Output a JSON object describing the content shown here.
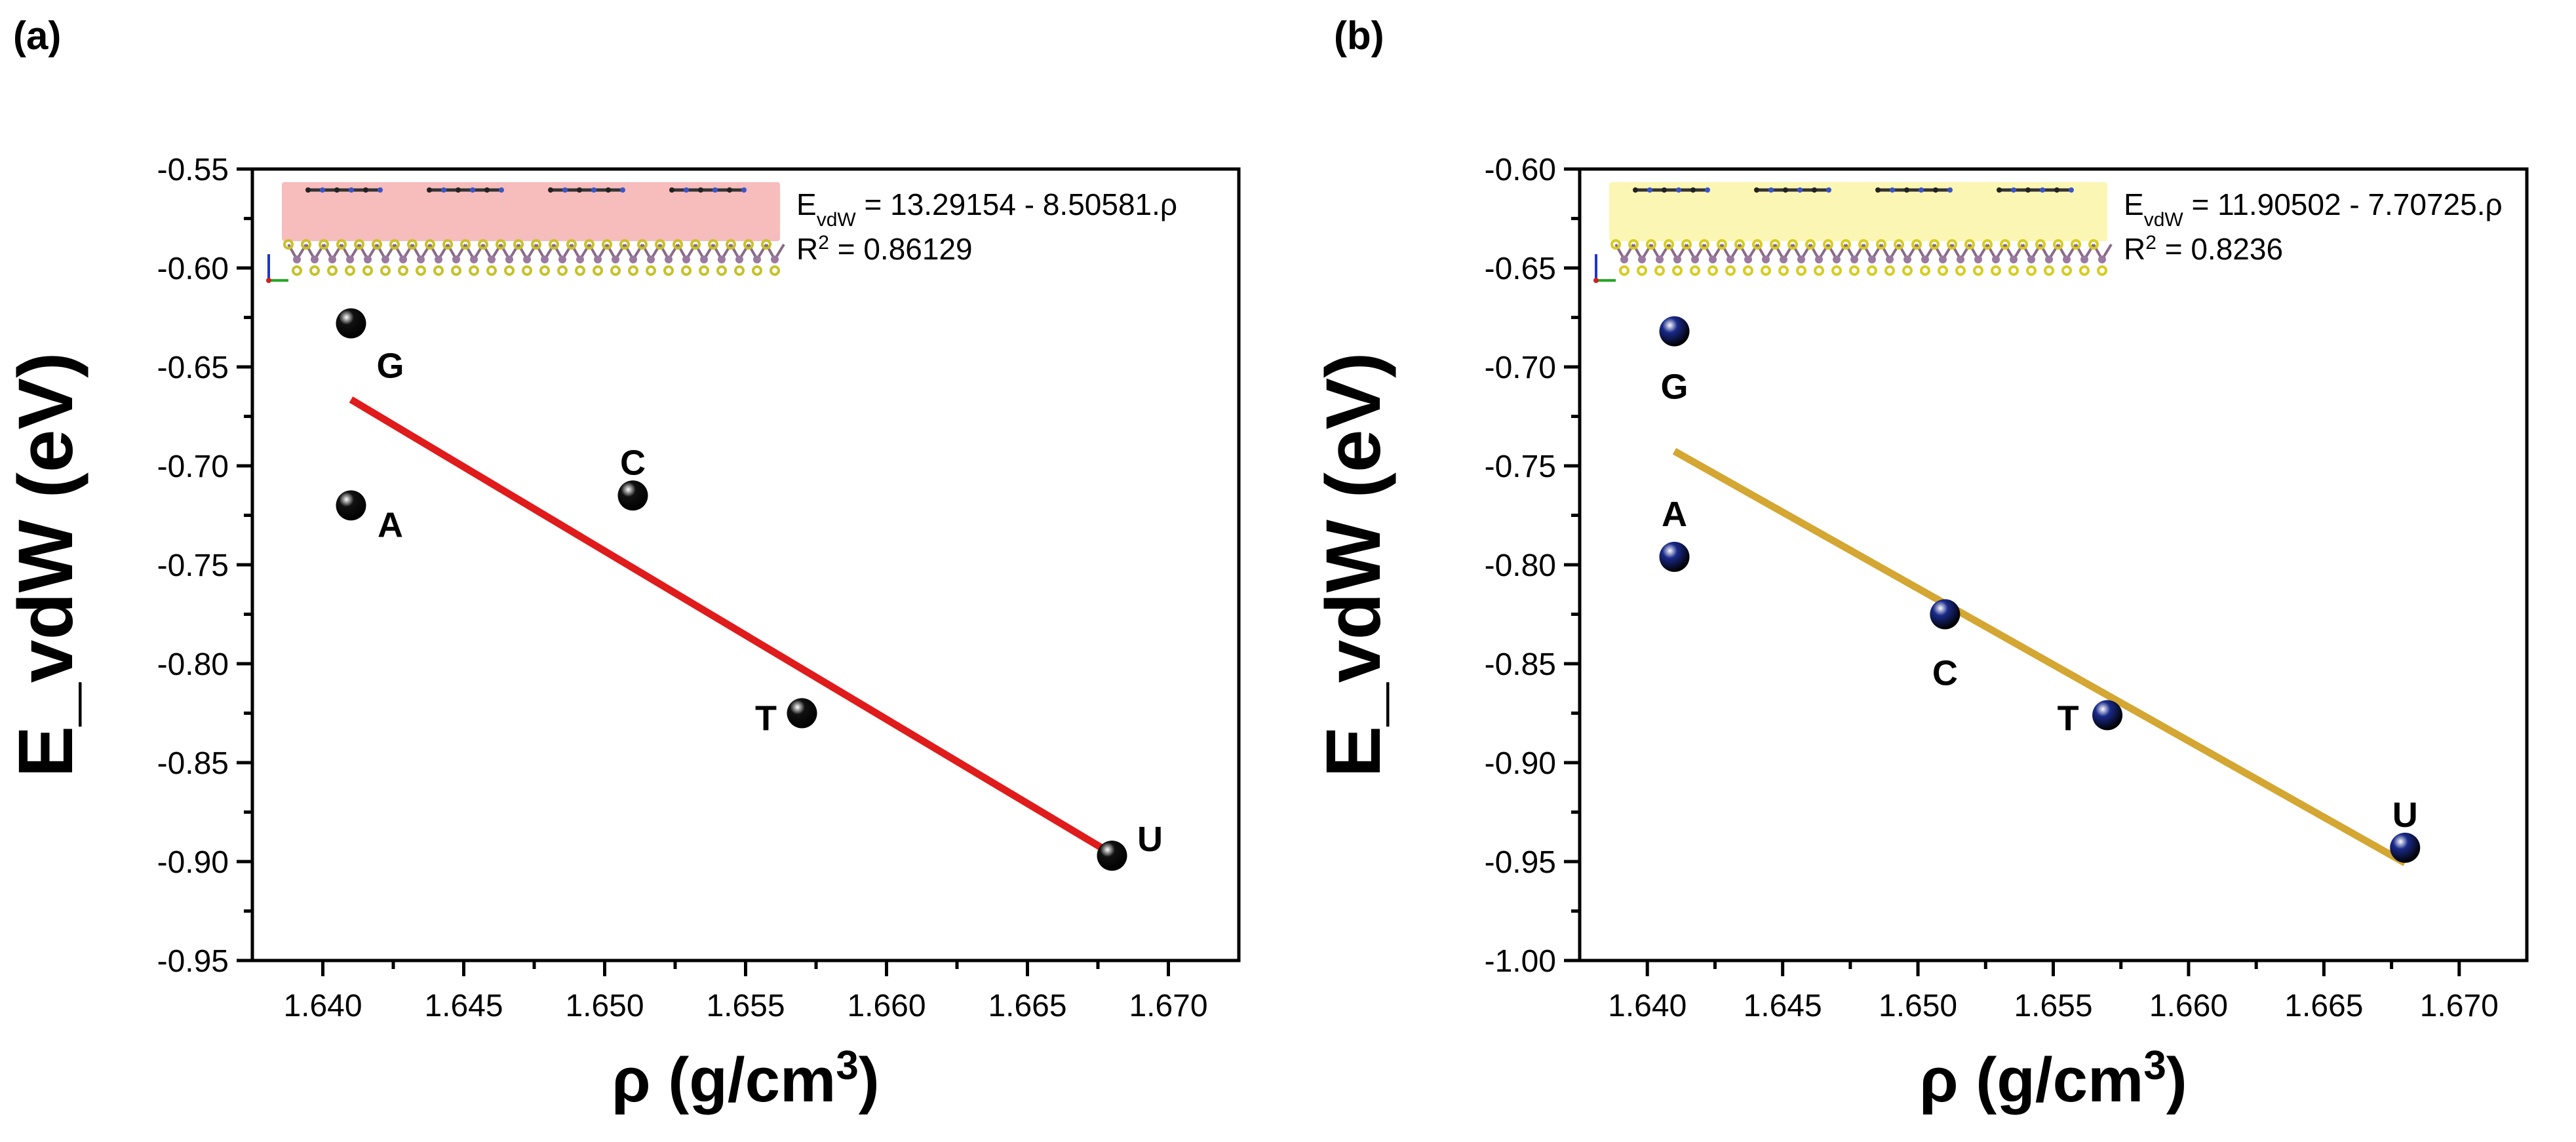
{
  "chart_data": [
    {
      "panel_label": "(a)",
      "type": "scatter",
      "ylabel": "E_vdW (eV)",
      "xlabel_prefix": "ρ",
      "xlabel_units": "(g/cm",
      "xlabel_sup": "3",
      "xlabel_close": ")",
      "xlim": [
        1.6375,
        1.6725
      ],
      "ylim": [
        -0.95,
        -0.55
      ],
      "x_ticks": [
        "1.640",
        "1.645",
        "1.650",
        "1.655",
        "1.660",
        "1.665",
        "1.670"
      ],
      "x_tick_values": [
        1.64,
        1.645,
        1.65,
        1.655,
        1.66,
        1.665,
        1.67
      ],
      "y_ticks": [
        "-0.55",
        "-0.60",
        "-0.65",
        "-0.70",
        "-0.75",
        "-0.80",
        "-0.85",
        "-0.90",
        "-0.95"
      ],
      "y_tick_values": [
        -0.55,
        -0.6,
        -0.65,
        -0.7,
        -0.75,
        -0.8,
        -0.85,
        -0.9,
        -0.95
      ],
      "points": [
        {
          "label": "G",
          "x": 1.641,
          "y": -0.628
        },
        {
          "label": "A",
          "x": 1.641,
          "y": -0.72
        },
        {
          "label": "C",
          "x": 1.651,
          "y": -0.715
        },
        {
          "label": "T",
          "x": 1.657,
          "y": -0.825
        },
        {
          "label": "U",
          "x": 1.668,
          "y": -0.897
        }
      ],
      "point_color": "#111111",
      "fit": {
        "intercept": 13.29154,
        "slope": -8.50581,
        "x_range": [
          1.641,
          1.668
        ],
        "color": "#e01b1b"
      },
      "equation_prefix": "E",
      "equation_sub": "vdW",
      "equation_rest": " = 13.29154 - 8.50581.ρ",
      "r2_prefix": "R",
      "r2_sup": "2",
      "r2_rest": " = 0.86129",
      "inset_band_color": "#f7bcbc",
      "inset_layer_color": "#c7c12a"
    },
    {
      "panel_label": "(b)",
      "type": "scatter",
      "ylabel": "E_vdW (eV)",
      "xlabel_prefix": "ρ",
      "xlabel_units": "(g/cm",
      "xlabel_sup": "3",
      "xlabel_close": ")",
      "xlim": [
        1.6375,
        1.6725
      ],
      "ylim": [
        -1.0,
        -0.6
      ],
      "x_ticks": [
        "1.640",
        "1.645",
        "1.650",
        "1.655",
        "1.660",
        "1.665",
        "1.670"
      ],
      "x_tick_values": [
        1.64,
        1.645,
        1.65,
        1.655,
        1.66,
        1.665,
        1.67
      ],
      "y_ticks": [
        "-0.60",
        "-0.65",
        "-0.70",
        "-0.75",
        "-0.80",
        "-0.85",
        "-0.90",
        "-0.95",
        "-1.00"
      ],
      "y_tick_values": [
        -0.6,
        -0.65,
        -0.7,
        -0.75,
        -0.8,
        -0.85,
        -0.9,
        -0.95,
        -1.0
      ],
      "points": [
        {
          "label": "G",
          "x": 1.641,
          "y": -0.682
        },
        {
          "label": "A",
          "x": 1.641,
          "y": -0.796
        },
        {
          "label": "C",
          "x": 1.651,
          "y": -0.825
        },
        {
          "label": "T",
          "x": 1.657,
          "y": -0.876
        },
        {
          "label": "U",
          "x": 1.668,
          "y": -0.943
        }
      ],
      "point_color": "#1a2a8a",
      "fit": {
        "intercept": 11.90502,
        "slope": -7.70725,
        "x_range": [
          1.641,
          1.668
        ],
        "color": "#d4a632"
      },
      "equation_prefix": "E",
      "equation_sub": "vdW",
      "equation_rest": " = 11.90502 - 7.70725.ρ",
      "r2_prefix": "R",
      "r2_sup": "2",
      "r2_rest": " = 0.8236",
      "inset_band_color": "#fbf6b4",
      "inset_layer_color": "#d6cc22"
    }
  ]
}
